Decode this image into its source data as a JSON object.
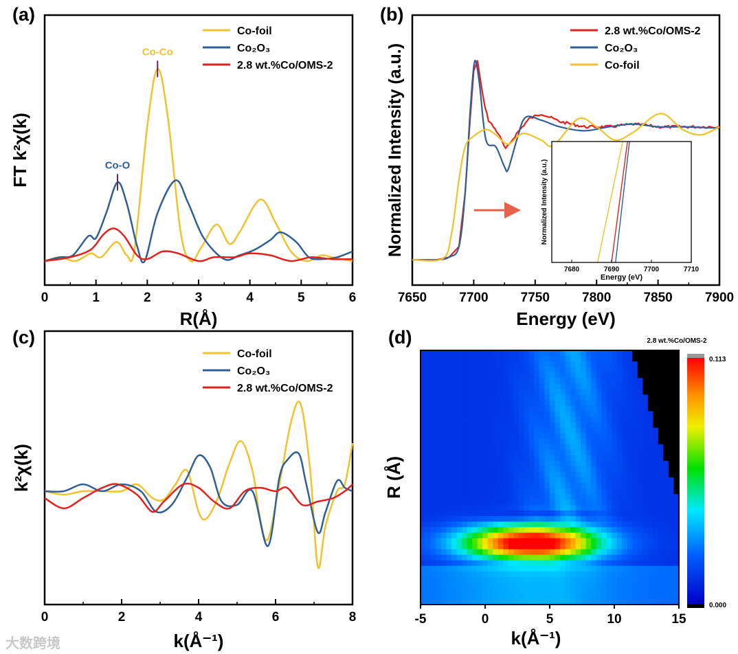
{
  "colors": {
    "co_foil": "#f2c12e",
    "co2o3": "#2f5f97",
    "sample": "#e3211c"
  },
  "watermark": "大数跨境",
  "chart_data": [
    {
      "panel": "(a)",
      "type": "line",
      "xlabel": "R(Å)",
      "ylabel": "FT k²χ(k)",
      "xlim": [
        0,
        6
      ],
      "ylim": [
        -0.125,
        1.28
      ],
      "xticks": [
        "0",
        "1",
        "2",
        "3",
        "4",
        "5",
        "6"
      ],
      "legend_placement": "top-right",
      "annotations": [
        {
          "text": "Co-Co",
          "x": 2.2,
          "y": 1.0,
          "color": "co_foil"
        },
        {
          "text": "Co-O",
          "x": 1.42,
          "y": 0.41,
          "color": "co2o3"
        }
      ],
      "series": [
        {
          "name": "Co-foil",
          "color": "co_foil",
          "points": [
            [
              0,
              0
            ],
            [
              0.3,
              0.02
            ],
            [
              0.6,
              0
            ],
            [
              0.9,
              0.04
            ],
            [
              1.1,
              0.02
            ],
            [
              1.4,
              0.1
            ],
            [
              1.6,
              0.03
            ],
            [
              1.75,
              0.06
            ],
            [
              2.0,
              0.7
            ],
            [
              2.2,
              1.0
            ],
            [
              2.4,
              0.75
            ],
            [
              2.65,
              0.15
            ],
            [
              2.85,
              0
            ],
            [
              3.05,
              0.07
            ],
            [
              3.35,
              0.19
            ],
            [
              3.6,
              0.09
            ],
            [
              3.8,
              0.15
            ],
            [
              4.2,
              0.32
            ],
            [
              4.5,
              0.2
            ],
            [
              4.8,
              0.05
            ],
            [
              5.1,
              0
            ],
            [
              5.4,
              0.03
            ],
            [
              5.6,
              0.02
            ],
            [
              6,
              0
            ]
          ]
        },
        {
          "name": "Co₂O₃",
          "color": "co2o3",
          "points": [
            [
              0,
              0
            ],
            [
              0.3,
              0.02
            ],
            [
              0.55,
              0.03
            ],
            [
              0.85,
              0.13
            ],
            [
              1.0,
              0.12
            ],
            [
              1.2,
              0.25
            ],
            [
              1.42,
              0.41
            ],
            [
              1.6,
              0.3
            ],
            [
              1.8,
              0.08
            ],
            [
              1.95,
              0
            ],
            [
              2.2,
              0.25
            ],
            [
              2.55,
              0.42
            ],
            [
              2.8,
              0.3
            ],
            [
              3.1,
              0.12
            ],
            [
              3.5,
              0.01
            ],
            [
              3.8,
              0.03
            ],
            [
              4.1,
              0.06
            ],
            [
              4.4,
              0.11
            ],
            [
              4.6,
              0.15
            ],
            [
              4.9,
              0.1
            ],
            [
              5.15,
              0.02
            ],
            [
              5.4,
              0.01
            ],
            [
              5.7,
              0.02
            ],
            [
              6,
              0.05
            ]
          ]
        },
        {
          "name": "2.8 wt.%Co/OMS-2",
          "color": "sample",
          "points": [
            [
              0,
              0
            ],
            [
              0.5,
              0.02
            ],
            [
              0.9,
              0.06
            ],
            [
              1.15,
              0.14
            ],
            [
              1.35,
              0.17
            ],
            [
              1.55,
              0.13
            ],
            [
              1.8,
              0.03
            ],
            [
              2.0,
              0.01
            ],
            [
              2.3,
              0.05
            ],
            [
              2.6,
              0.04
            ],
            [
              3.0,
              0
            ],
            [
              3.3,
              0.02
            ],
            [
              3.7,
              0.02
            ],
            [
              4.0,
              0.04
            ],
            [
              4.4,
              0.03
            ],
            [
              4.8,
              0
            ],
            [
              5.2,
              0.02
            ],
            [
              5.6,
              0.01
            ],
            [
              6,
              0.01
            ]
          ]
        }
      ]
    },
    {
      "panel": "(b)",
      "type": "line",
      "xlabel": "Energy (eV)",
      "ylabel": "Normalized Intensity (a.u.)",
      "xlim": [
        7650,
        7900
      ],
      "ylim": [
        -0.19,
        1.84
      ],
      "xticks": [
        "7650",
        "7700",
        "7750",
        "7800",
        "7850",
        "7900"
      ],
      "legend_placement": "top-right",
      "series": [
        {
          "name": "2.8 wt.%Co/OMS-2",
          "color": "sample",
          "noisy": true,
          "points": [
            [
              7650,
              0
            ],
            [
              7670,
              0
            ],
            [
              7680,
              0.02
            ],
            [
              7688,
              0.1
            ],
            [
              7693,
              0.5
            ],
            [
              7697,
              1.05
            ],
            [
              7700,
              1.42
            ],
            [
              7703,
              1.5
            ],
            [
              7708,
              1.2
            ],
            [
              7712,
              1.05
            ],
            [
              7720,
              0.95
            ],
            [
              7726,
              0.83
            ],
            [
              7735,
              0.95
            ],
            [
              7745,
              1.06
            ],
            [
              7755,
              1.1
            ],
            [
              7770,
              1.04
            ],
            [
              7790,
              1.0
            ],
            [
              7810,
              1.0
            ],
            [
              7830,
              1.02
            ],
            [
              7850,
              1.0
            ],
            [
              7870,
              1.0
            ],
            [
              7900,
              1.0
            ]
          ]
        },
        {
          "name": "Co₂O₃",
          "color": "co2o3",
          "points": [
            [
              7650,
              0
            ],
            [
              7670,
              0
            ],
            [
              7680,
              0.02
            ],
            [
              7688,
              0.1
            ],
            [
              7693,
              0.5
            ],
            [
              7697,
              1.1
            ],
            [
              7700,
              1.45
            ],
            [
              7702,
              1.48
            ],
            [
              7705,
              1.3
            ],
            [
              7710,
              0.9
            ],
            [
              7718,
              0.85
            ],
            [
              7725,
              0.7
            ],
            [
              7728,
              0.68
            ],
            [
              7735,
              0.9
            ],
            [
              7742,
              1.07
            ],
            [
              7755,
              1.05
            ],
            [
              7770,
              1.0
            ],
            [
              7790,
              0.97
            ],
            [
              7810,
              1.0
            ],
            [
              7830,
              1.02
            ],
            [
              7850,
              1.0
            ],
            [
              7870,
              1.0
            ],
            [
              7900,
              0.99
            ]
          ]
        },
        {
          "name": "Co-foil",
          "color": "co_foil",
          "points": [
            [
              7650,
              0
            ],
            [
              7675,
              0.01
            ],
            [
              7682,
              0.2
            ],
            [
              7688,
              0.6
            ],
            [
              7693,
              0.85
            ],
            [
              7700,
              0.93
            ],
            [
              7710,
              0.98
            ],
            [
              7718,
              0.94
            ],
            [
              7728,
              0.87
            ],
            [
              7740,
              0.95
            ],
            [
              7755,
              0.9
            ],
            [
              7765,
              0.86
            ],
            [
              7785,
              1.06
            ],
            [
              7800,
              1.0
            ],
            [
              7815,
              0.9
            ],
            [
              7830,
              0.96
            ],
            [
              7852,
              1.1
            ],
            [
              7870,
              0.98
            ],
            [
              7885,
              0.94
            ],
            [
              7900,
              1.0
            ]
          ]
        }
      ],
      "inset": {
        "xlabel": "Energy (eV)",
        "ylabel": "Normalized Intensity (a.u.)",
        "xlim": [
          7675,
          7710
        ],
        "ylim": [
          0,
          1
        ],
        "xticks": [
          "7680",
          "7690",
          "7700",
          "7710"
        ],
        "series": [
          {
            "name": "Co-foil",
            "color": "co_foil",
            "points": [
              [
                7686.5,
                0
              ],
              [
                7692.8,
                1
              ]
            ]
          },
          {
            "name": "2.8 wt.%Co/OMS-2",
            "color": "sample",
            "points": [
              [
                7690,
                0
              ],
              [
                7694,
                1
              ]
            ]
          },
          {
            "name": "Co₂O₃",
            "color": "co2o3",
            "points": [
              [
                7691,
                0
              ],
              [
                7694.5,
                1
              ]
            ]
          }
        ]
      }
    },
    {
      "panel": "(c)",
      "type": "line",
      "xlabel": "k(Å⁻¹)",
      "ylabel": "k²χ(k)",
      "xlim": [
        0,
        8
      ],
      "ylim": [
        -1.65,
        2.33
      ],
      "xticks": [
        "0",
        "2",
        "4",
        "6",
        "8"
      ],
      "legend_placement": "top-right",
      "series": [
        {
          "name": "Co-foil",
          "color": "co_foil",
          "points": [
            [
              0,
              0
            ],
            [
              0.5,
              -0.05
            ],
            [
              1,
              0
            ],
            [
              1.5,
              0
            ],
            [
              2,
              0
            ],
            [
              2.4,
              0.1
            ],
            [
              2.8,
              -0.1
            ],
            [
              3.1,
              -0.12
            ],
            [
              3.4,
              0.1
            ],
            [
              3.7,
              0.3
            ],
            [
              4.0,
              -0.3
            ],
            [
              4.2,
              -0.4
            ],
            [
              4.5,
              -0.1
            ],
            [
              4.8,
              0.4
            ],
            [
              5.1,
              0.73
            ],
            [
              5.4,
              0.3
            ],
            [
              5.6,
              -0.4
            ],
            [
              5.8,
              -0.7
            ],
            [
              6.1,
              0.1
            ],
            [
              6.4,
              1.0
            ],
            [
              6.65,
              1.27
            ],
            [
              6.9,
              0.3
            ],
            [
              7.1,
              -1.1
            ],
            [
              7.3,
              -0.5
            ],
            [
              7.6,
              0
            ],
            [
              7.8,
              0.1
            ],
            [
              8,
              0.7
            ]
          ]
        },
        {
          "name": "Co₂O₃",
          "color": "co2o3",
          "points": [
            [
              0,
              0
            ],
            [
              0.5,
              0
            ],
            [
              1.0,
              0.1
            ],
            [
              1.5,
              0
            ],
            [
              2.0,
              0.1
            ],
            [
              2.5,
              0
            ],
            [
              2.9,
              -0.3
            ],
            [
              3.3,
              -0.2
            ],
            [
              3.7,
              0.2
            ],
            [
              4.0,
              0.52
            ],
            [
              4.3,
              0.35
            ],
            [
              4.6,
              -0.15
            ],
            [
              5.0,
              -0.2
            ],
            [
              5.4,
              0
            ],
            [
              5.8,
              -0.8
            ],
            [
              6.1,
              0.2
            ],
            [
              6.3,
              0.45
            ],
            [
              6.6,
              0.55
            ],
            [
              6.8,
              0.1
            ],
            [
              7.1,
              -0.6
            ],
            [
              7.3,
              -0.3
            ],
            [
              7.6,
              0.15
            ],
            [
              7.8,
              0.05
            ],
            [
              8,
              0
            ]
          ]
        },
        {
          "name": "2.8 wt.%Co/OMS-2",
          "color": "sample",
          "points": [
            [
              0,
              -0.1
            ],
            [
              0.5,
              -0.25
            ],
            [
              1.0,
              -0.1
            ],
            [
              1.5,
              0.05
            ],
            [
              1.9,
              0.1
            ],
            [
              2.4,
              -0.05
            ],
            [
              2.8,
              -0.3
            ],
            [
              3.1,
              -0.15
            ],
            [
              3.6,
              0.1
            ],
            [
              4.0,
              0.05
            ],
            [
              4.4,
              -0.15
            ],
            [
              4.8,
              -0.25
            ],
            [
              5.2,
              0
            ],
            [
              5.6,
              0.05
            ],
            [
              6.0,
              0
            ],
            [
              6.3,
              0.05
            ],
            [
              6.7,
              -0.2
            ],
            [
              7.1,
              -0.15
            ],
            [
              7.5,
              -0.1
            ],
            [
              7.8,
              0
            ],
            [
              8,
              0.1
            ]
          ]
        }
      ]
    },
    {
      "panel": "(d)",
      "type": "heatmap",
      "title": "2.8 wt.%Co/OMS-2",
      "xlabel": "k(Å⁻¹)",
      "ylabel": "R (Å)",
      "xlim": [
        -5,
        15
      ],
      "ylim": [
        0,
        6
      ],
      "xticks": [
        "-5",
        "0",
        "5",
        "10",
        "15"
      ],
      "colorbar": {
        "min_label": "0.000",
        "max_label": "0.113",
        "min": 0,
        "max": 0.113
      },
      "peaks": [
        {
          "k": 3.5,
          "R": 1.45,
          "value": 0.113
        }
      ]
    }
  ]
}
